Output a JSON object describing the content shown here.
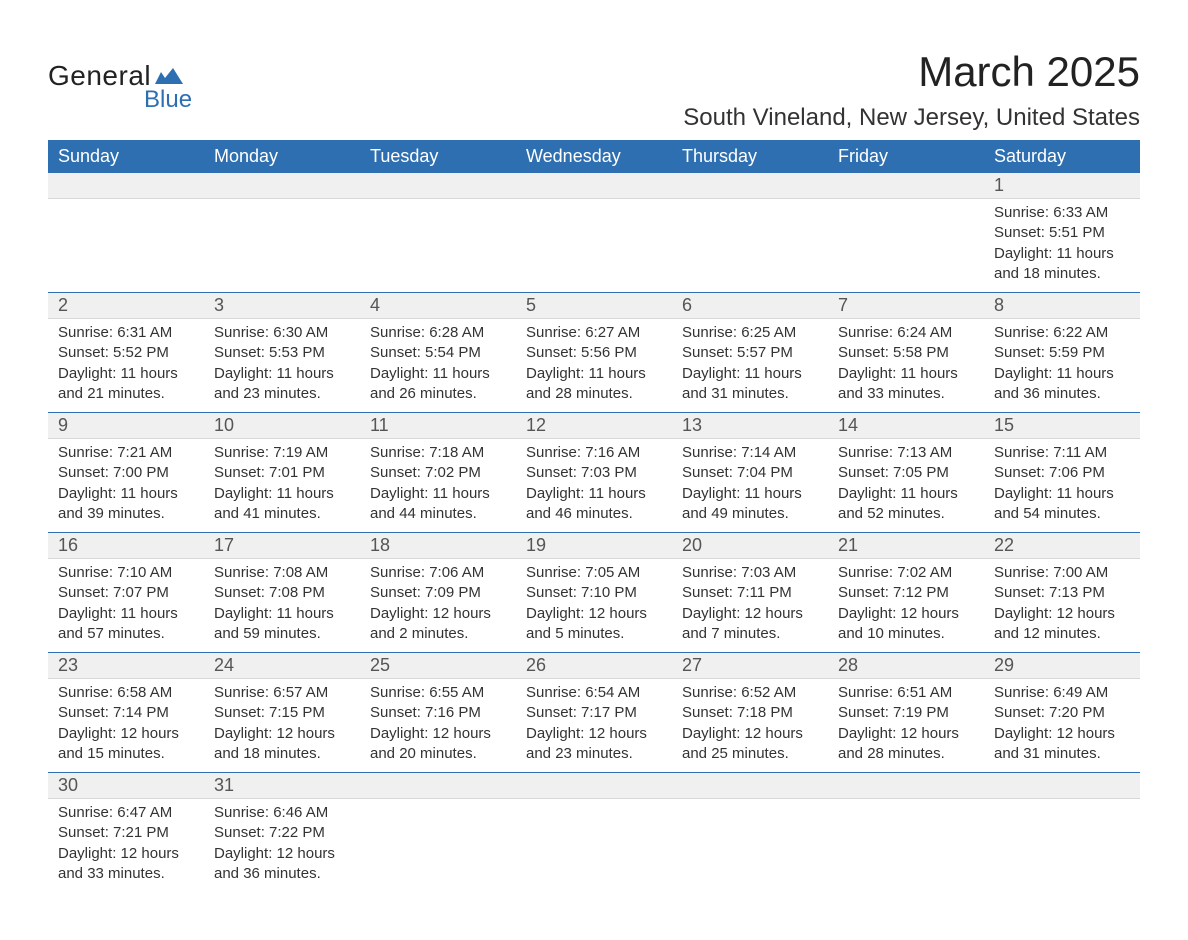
{
  "logo": {
    "text1": "General",
    "text2": "Blue",
    "icon_color": "#2d6fb0"
  },
  "title": {
    "month": "March 2025",
    "location": "South Vineland, New Jersey, United States"
  },
  "colors": {
    "header_bg": "#2d6fb0",
    "header_text": "#ffffff",
    "daynum_bg": "#f0f0f0",
    "row_border": "#2d6fb0",
    "body_text": "#333333"
  },
  "weekdays": [
    "Sunday",
    "Monday",
    "Tuesday",
    "Wednesday",
    "Thursday",
    "Friday",
    "Saturday"
  ],
  "weeks": [
    [
      null,
      null,
      null,
      null,
      null,
      null,
      {
        "n": "1",
        "sr": "Sunrise: 6:33 AM",
        "ss": "Sunset: 5:51 PM",
        "d1": "Daylight: 11 hours",
        "d2": "and 18 minutes."
      }
    ],
    [
      {
        "n": "2",
        "sr": "Sunrise: 6:31 AM",
        "ss": "Sunset: 5:52 PM",
        "d1": "Daylight: 11 hours",
        "d2": "and 21 minutes."
      },
      {
        "n": "3",
        "sr": "Sunrise: 6:30 AM",
        "ss": "Sunset: 5:53 PM",
        "d1": "Daylight: 11 hours",
        "d2": "and 23 minutes."
      },
      {
        "n": "4",
        "sr": "Sunrise: 6:28 AM",
        "ss": "Sunset: 5:54 PM",
        "d1": "Daylight: 11 hours",
        "d2": "and 26 minutes."
      },
      {
        "n": "5",
        "sr": "Sunrise: 6:27 AM",
        "ss": "Sunset: 5:56 PM",
        "d1": "Daylight: 11 hours",
        "d2": "and 28 minutes."
      },
      {
        "n": "6",
        "sr": "Sunrise: 6:25 AM",
        "ss": "Sunset: 5:57 PM",
        "d1": "Daylight: 11 hours",
        "d2": "and 31 minutes."
      },
      {
        "n": "7",
        "sr": "Sunrise: 6:24 AM",
        "ss": "Sunset: 5:58 PM",
        "d1": "Daylight: 11 hours",
        "d2": "and 33 minutes."
      },
      {
        "n": "8",
        "sr": "Sunrise: 6:22 AM",
        "ss": "Sunset: 5:59 PM",
        "d1": "Daylight: 11 hours",
        "d2": "and 36 minutes."
      }
    ],
    [
      {
        "n": "9",
        "sr": "Sunrise: 7:21 AM",
        "ss": "Sunset: 7:00 PM",
        "d1": "Daylight: 11 hours",
        "d2": "and 39 minutes."
      },
      {
        "n": "10",
        "sr": "Sunrise: 7:19 AM",
        "ss": "Sunset: 7:01 PM",
        "d1": "Daylight: 11 hours",
        "d2": "and 41 minutes."
      },
      {
        "n": "11",
        "sr": "Sunrise: 7:18 AM",
        "ss": "Sunset: 7:02 PM",
        "d1": "Daylight: 11 hours",
        "d2": "and 44 minutes."
      },
      {
        "n": "12",
        "sr": "Sunrise: 7:16 AM",
        "ss": "Sunset: 7:03 PM",
        "d1": "Daylight: 11 hours",
        "d2": "and 46 minutes."
      },
      {
        "n": "13",
        "sr": "Sunrise: 7:14 AM",
        "ss": "Sunset: 7:04 PM",
        "d1": "Daylight: 11 hours",
        "d2": "and 49 minutes."
      },
      {
        "n": "14",
        "sr": "Sunrise: 7:13 AM",
        "ss": "Sunset: 7:05 PM",
        "d1": "Daylight: 11 hours",
        "d2": "and 52 minutes."
      },
      {
        "n": "15",
        "sr": "Sunrise: 7:11 AM",
        "ss": "Sunset: 7:06 PM",
        "d1": "Daylight: 11 hours",
        "d2": "and 54 minutes."
      }
    ],
    [
      {
        "n": "16",
        "sr": "Sunrise: 7:10 AM",
        "ss": "Sunset: 7:07 PM",
        "d1": "Daylight: 11 hours",
        "d2": "and 57 minutes."
      },
      {
        "n": "17",
        "sr": "Sunrise: 7:08 AM",
        "ss": "Sunset: 7:08 PM",
        "d1": "Daylight: 11 hours",
        "d2": "and 59 minutes."
      },
      {
        "n": "18",
        "sr": "Sunrise: 7:06 AM",
        "ss": "Sunset: 7:09 PM",
        "d1": "Daylight: 12 hours",
        "d2": "and 2 minutes."
      },
      {
        "n": "19",
        "sr": "Sunrise: 7:05 AM",
        "ss": "Sunset: 7:10 PM",
        "d1": "Daylight: 12 hours",
        "d2": "and 5 minutes."
      },
      {
        "n": "20",
        "sr": "Sunrise: 7:03 AM",
        "ss": "Sunset: 7:11 PM",
        "d1": "Daylight: 12 hours",
        "d2": "and 7 minutes."
      },
      {
        "n": "21",
        "sr": "Sunrise: 7:02 AM",
        "ss": "Sunset: 7:12 PM",
        "d1": "Daylight: 12 hours",
        "d2": "and 10 minutes."
      },
      {
        "n": "22",
        "sr": "Sunrise: 7:00 AM",
        "ss": "Sunset: 7:13 PM",
        "d1": "Daylight: 12 hours",
        "d2": "and 12 minutes."
      }
    ],
    [
      {
        "n": "23",
        "sr": "Sunrise: 6:58 AM",
        "ss": "Sunset: 7:14 PM",
        "d1": "Daylight: 12 hours",
        "d2": "and 15 minutes."
      },
      {
        "n": "24",
        "sr": "Sunrise: 6:57 AM",
        "ss": "Sunset: 7:15 PM",
        "d1": "Daylight: 12 hours",
        "d2": "and 18 minutes."
      },
      {
        "n": "25",
        "sr": "Sunrise: 6:55 AM",
        "ss": "Sunset: 7:16 PM",
        "d1": "Daylight: 12 hours",
        "d2": "and 20 minutes."
      },
      {
        "n": "26",
        "sr": "Sunrise: 6:54 AM",
        "ss": "Sunset: 7:17 PM",
        "d1": "Daylight: 12 hours",
        "d2": "and 23 minutes."
      },
      {
        "n": "27",
        "sr": "Sunrise: 6:52 AM",
        "ss": "Sunset: 7:18 PM",
        "d1": "Daylight: 12 hours",
        "d2": "and 25 minutes."
      },
      {
        "n": "28",
        "sr": "Sunrise: 6:51 AM",
        "ss": "Sunset: 7:19 PM",
        "d1": "Daylight: 12 hours",
        "d2": "and 28 minutes."
      },
      {
        "n": "29",
        "sr": "Sunrise: 6:49 AM",
        "ss": "Sunset: 7:20 PM",
        "d1": "Daylight: 12 hours",
        "d2": "and 31 minutes."
      }
    ],
    [
      {
        "n": "30",
        "sr": "Sunrise: 6:47 AM",
        "ss": "Sunset: 7:21 PM",
        "d1": "Daylight: 12 hours",
        "d2": "and 33 minutes."
      },
      {
        "n": "31",
        "sr": "Sunrise: 6:46 AM",
        "ss": "Sunset: 7:22 PM",
        "d1": "Daylight: 12 hours",
        "d2": "and 36 minutes."
      },
      null,
      null,
      null,
      null,
      null
    ]
  ]
}
